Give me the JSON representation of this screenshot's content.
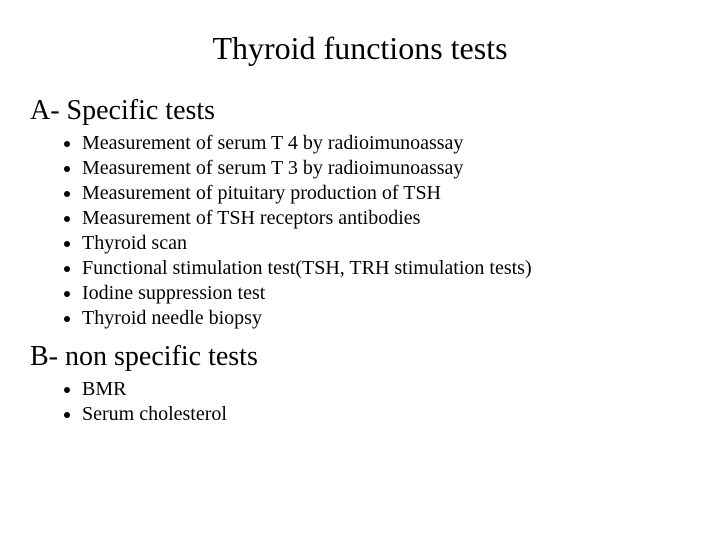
{
  "background_color": "#ffffff",
  "text_color": "#000000",
  "font_family": "Times New Roman",
  "title": {
    "text": "Thyroid functions tests",
    "fontsize": 32,
    "align": "center"
  },
  "sections": [
    {
      "heading": "A-  Specific tests",
      "heading_fontsize": 28,
      "bullet_fontsize": 20,
      "bullet_marker": "disc",
      "items": [
        "Measurement of serum T 4 by radioimunoassay",
        "Measurement of serum T 3 by radioimunoassay",
        "Measurement of pituitary production of TSH",
        "Measurement of TSH receptors antibodies",
        "Thyroid scan",
        "Functional stimulation test(TSH, TRH stimulation tests)",
        "Iodine suppression test",
        "Thyroid needle biopsy"
      ]
    },
    {
      "heading": "B-  non specific tests",
      "heading_fontsize": 28,
      "bullet_fontsize": 20,
      "bullet_marker": "disc",
      "items": [
        "BMR",
        "Serum cholesterol"
      ]
    }
  ]
}
